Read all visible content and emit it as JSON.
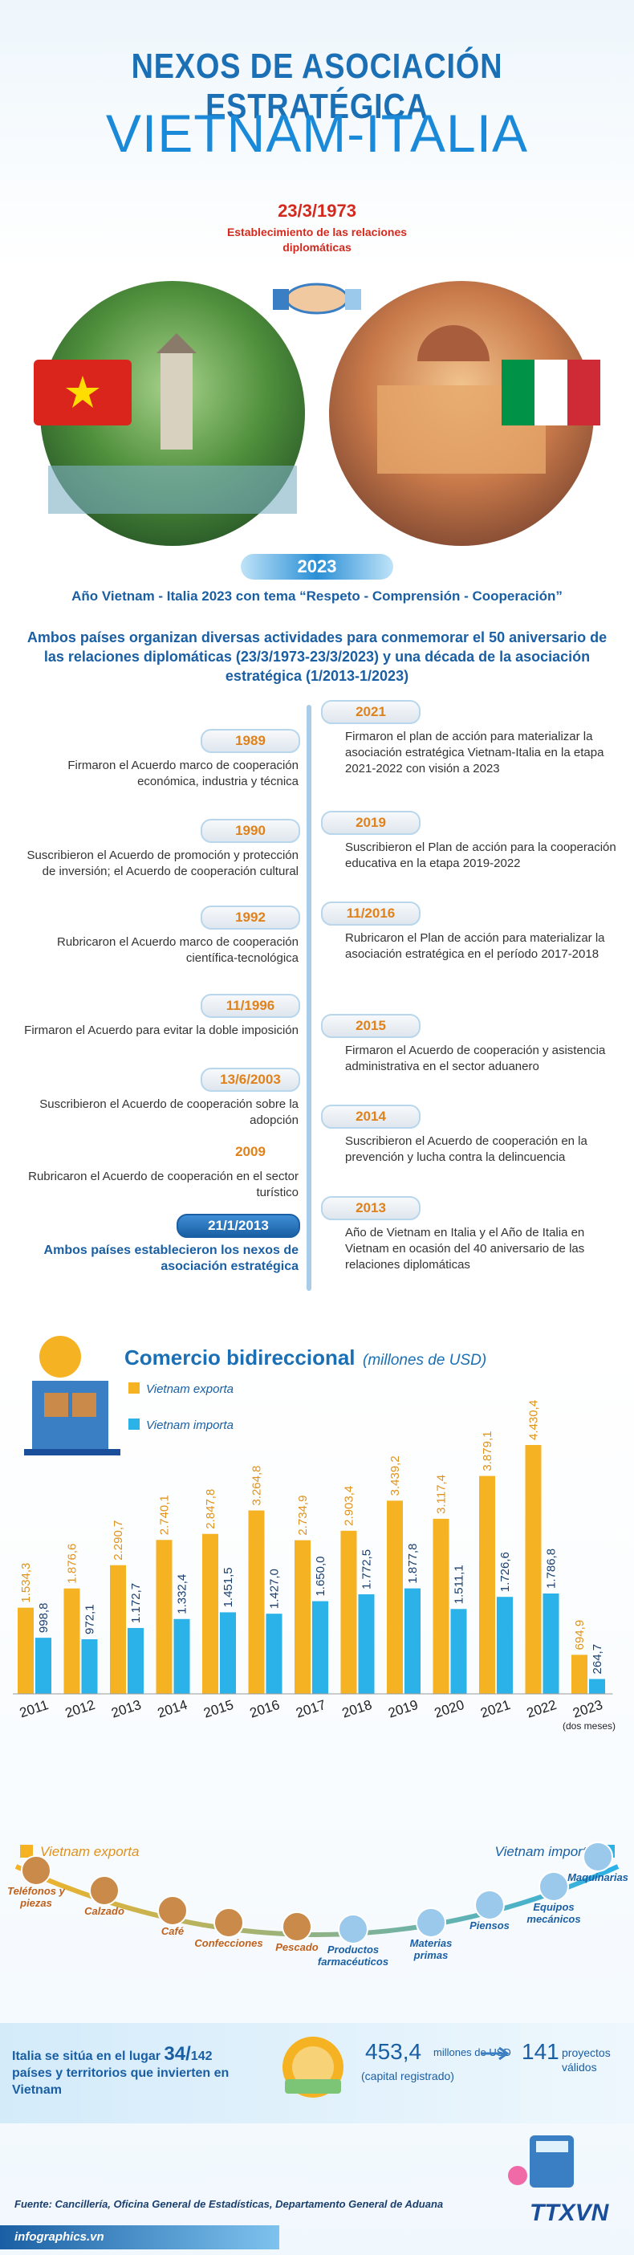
{
  "header": {
    "title_line1": "NEXOS DE ASOCIACIÓN ESTRATÉGICA",
    "title_line2": "VIETNAM-ITALIA",
    "date": "23/3/1973",
    "date_caption": "Establecimiento de las relaciones diplomáticas"
  },
  "theme": {
    "year": "2023",
    "text": "Año  Vietnam - Italia 2023 con tema “Respeto - Comprensión - Cooperación”"
  },
  "intro": "Ambos países organizan diversas actividades para conmemorar el 50 aniversario de las relaciones diplomáticas (23/3/1973-23/3/2023) y una década de la asociación estratégica (1/2013-1/2023)",
  "timeline": {
    "left": [
      {
        "date": "1989",
        "text": "Firmaron el Acuerdo marco de cooperación económica, industria y técnica"
      },
      {
        "date": "1990",
        "text": "Suscribieron el Acuerdo de promoción y protección de inversión; el Acuerdo de cooperación cultural"
      },
      {
        "date": "1992",
        "text": "Rubricaron el Acuerdo marco de cooperación científica-tecnológica"
      },
      {
        "date": "11/1996",
        "text": "Firmaron el Acuerdo para evitar la doble imposición"
      },
      {
        "date": "13/6/2003",
        "text": "Suscribieron el Acuerdo  de cooperación sobre la adopción"
      },
      {
        "date": "2009",
        "text": "Rubricaron el Acuerdo de cooperación en el sector turístico"
      },
      {
        "date": "21/1/2013",
        "text": "Ambos países establecieron los nexos de asociación estratégica"
      }
    ],
    "right": [
      {
        "date": "2021",
        "text": "Firmaron el plan de acción para materializar la asociación estratégica Vietnam-Italia en la etapa 2021-2022 con visión a 2023"
      },
      {
        "date": "2019",
        "text": "Suscribieron el Plan de acción para la cooperación educativa en la etapa 2019-2022"
      },
      {
        "date": "11/2016",
        "text": "Rubricaron el Plan de acción para materializar la asociación estratégica en el período 2017-2018"
      },
      {
        "date": "2015",
        "text": "Firmaron el Acuerdo de cooperación y asistencia administrativa en el sector aduanero"
      },
      {
        "date": "2014",
        "text": "Suscribieron el Acuerdo de cooperación en la prevención y lucha contra la delincuencia"
      },
      {
        "date": "2013",
        "text": "Año de Vietnam en Italia y el Año de Italia en Vietnam en ocasión del 40 aniversario de las relaciones diplomáticas"
      }
    ]
  },
  "chart_data": {
    "type": "bar",
    "title": "Comercio bidireccional",
    "subtitle": "(millones de USD)",
    "categories": [
      "2011",
      "2012",
      "2013",
      "2014",
      "2015",
      "2016",
      "2017",
      "2018",
      "2019",
      "2020",
      "2021",
      "2022",
      "2023"
    ],
    "category_note": "(dos meses)",
    "series": [
      {
        "name": "Vietnam exporta",
        "color": "#f5b324",
        "values": [
          1534.3,
          1876.6,
          2290.7,
          2740.1,
          2847.8,
          3264.8,
          2734.9,
          2903.4,
          3439.2,
          3117.4,
          3879.1,
          4430.4,
          694.9
        ],
        "value_labels": [
          "1.534,3",
          "1.876,6",
          "2.290,7",
          "2.740,1",
          "2.847,8",
          "3.264,8",
          "2.734,9",
          "2.903,4",
          "3.439,2",
          "3.117,4",
          "3.879,1",
          "4.430,4",
          "694,9"
        ]
      },
      {
        "name": "Vietnam importa",
        "color": "#2bb2e8",
        "values": [
          998.8,
          972.1,
          1172.7,
          1332.4,
          1451.5,
          1427.0,
          1650.0,
          1772.5,
          1877.8,
          1511.1,
          1726.6,
          1786.8,
          264.7
        ],
        "value_labels": [
          "998,8",
          "972,1",
          "1.172,7",
          "1.332,4",
          "1.451,5",
          "1.427,0",
          "1.650,0",
          "1.772,5",
          "1.877,8",
          "1.511,1",
          "1.726,6",
          "1.786,8",
          "264,7"
        ]
      }
    ]
  },
  "trade_goods": {
    "exports": [
      "Teléfonos y piezas",
      "Calzado",
      "Café",
      "Confecciones",
      "Pescado"
    ],
    "imports": [
      "Productos farmacéuticos",
      "Materias primas",
      "Piensos",
      "Equipos mecánicos",
      "Maquinarias"
    ]
  },
  "investment": {
    "rank_text": "Italia se sitúa en el lugar",
    "rank": "34/",
    "rank_total": "142",
    "rank_caption": "países y territorios que invierten en Vietnam",
    "capital": "453,4",
    "capital_unit": "millones de USD",
    "capital_note": "(capital registrado)",
    "projects": "141",
    "projects_caption": "proyectos válidos"
  },
  "footer": {
    "source": "Fuente: Cancillería, Oficina General de Estadísticas, Departamento General de Aduana",
    "site": "infographics.vn",
    "logo": "TTXVN"
  }
}
